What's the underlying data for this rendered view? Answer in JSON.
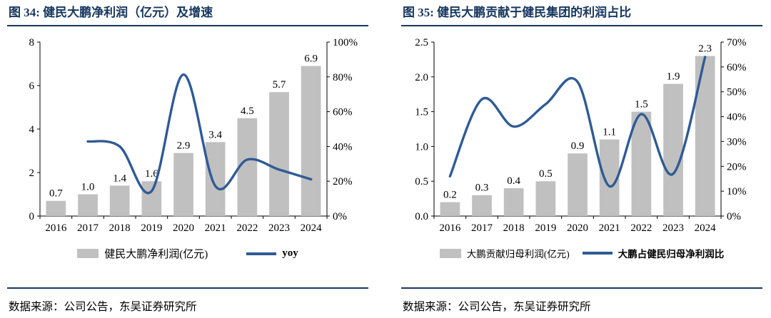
{
  "colors": {
    "bar": "#c0c0c0",
    "line": "#2f5b94",
    "accent": "#17375e",
    "axis": "#000000"
  },
  "panels": [
    {
      "title": "图 34:  健民大鹏净利润（亿元）及增速",
      "legend": [
        {
          "type": "bar",
          "label": "健民大鹏净利润(亿元)"
        },
        {
          "type": "line",
          "label": "yoy"
        }
      ],
      "source": "数据来源：公司公告，东吴证券研究所"
    },
    {
      "title": "图 35:  健民大鹏贡献于健民集团的利润占比",
      "legend": [
        {
          "type": "bar",
          "label": "大鹏贡献归母利润(亿元)"
        },
        {
          "type": "line",
          "label": "大鹏占健民归母净利润比"
        }
      ],
      "source": "数据来源：公司公告，东吴证券研究所"
    }
  ],
  "chart_data": [
    {
      "type": "bar+line",
      "title": "健民大鹏净利润（亿元）及增速",
      "categories": [
        "2016",
        "2017",
        "2018",
        "2019",
        "2020",
        "2021",
        "2022",
        "2023",
        "2024"
      ],
      "series": [
        {
          "name": "健民大鹏净利润(亿元)",
          "type": "bar",
          "axis": "left",
          "values": [
            0.7,
            1.0,
            1.4,
            1.6,
            2.9,
            3.4,
            4.5,
            5.7,
            6.9
          ]
        },
        {
          "name": "yoy",
          "type": "line",
          "axis": "right",
          "values": [
            null,
            42.9,
            40.0,
            14.3,
            81.3,
            17.2,
            32.4,
            26.7,
            21.1
          ]
        }
      ],
      "bar_labels": [
        "0.7",
        "1.0",
        "1.4",
        "1.6",
        "2.9",
        "3.4",
        "4.5",
        "5.7",
        "6.9"
      ],
      "y_left": {
        "min": 0,
        "max": 8,
        "ticks": [
          "0",
          "2",
          "4",
          "6",
          "8"
        ]
      },
      "y_right": {
        "min": 0,
        "max": 100,
        "ticks": [
          "0%",
          "20%",
          "40%",
          "60%",
          "80%",
          "100%"
        ]
      },
      "grid": false,
      "legend_position": "bottom"
    },
    {
      "type": "bar+line",
      "title": "健民大鹏贡献于健民集团的利润占比",
      "categories": [
        "2016",
        "2017",
        "2018",
        "2019",
        "2020",
        "2021",
        "2022",
        "2023",
        "2024"
      ],
      "series": [
        {
          "name": "大鹏贡献归母利润(亿元)",
          "type": "bar",
          "axis": "left",
          "values": [
            0.2,
            0.3,
            0.4,
            0.5,
            0.9,
            1.1,
            1.5,
            1.9,
            2.3
          ]
        },
        {
          "name": "大鹏占健民归母净利润比",
          "type": "line",
          "axis": "right",
          "values": [
            16,
            47,
            36,
            45,
            54,
            12,
            41,
            17,
            64
          ]
        }
      ],
      "bar_labels": [
        "0.2",
        "0.3",
        "0.4",
        "0.5",
        "0.9",
        "1.1",
        "1.5",
        "1.9",
        "2.3"
      ],
      "y_left": {
        "min": 0,
        "max": 2.5,
        "ticks": [
          "0.0",
          "0.5",
          "1.0",
          "1.5",
          "2.0",
          "2.5"
        ]
      },
      "y_right": {
        "min": 0,
        "max": 70,
        "ticks": [
          "0%",
          "10%",
          "20%",
          "30%",
          "40%",
          "50%",
          "60%",
          "70%"
        ]
      },
      "grid": false,
      "legend_position": "bottom"
    }
  ]
}
